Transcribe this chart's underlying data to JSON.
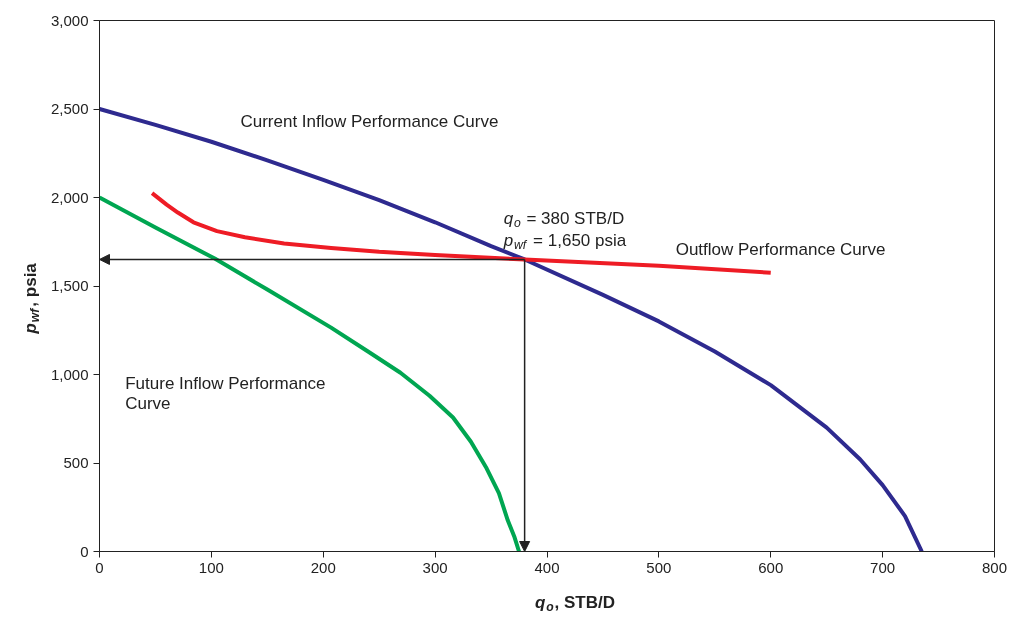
{
  "chart_data": {
    "type": "line",
    "xlabel": "q$_{o}$, STB/D",
    "ylabel": "p$_{wf}$, psia",
    "xlim": [
      0,
      800
    ],
    "ylim": [
      0,
      3000
    ],
    "xticks": [
      0,
      100,
      200,
      300,
      400,
      500,
      600,
      700,
      800
    ],
    "yticks": [
      0,
      500,
      {
        "value": 1000,
        "label": "1,000"
      },
      {
        "value": 1500,
        "label": "1,500"
      },
      {
        "value": 2000,
        "label": "2,000"
      },
      {
        "value": 2500,
        "label": "2,500"
      },
      {
        "value": 3000,
        "label": "3,000"
      }
    ],
    "grid": false,
    "legend": false,
    "marker": "none",
    "line_style": "solid",
    "series": [
      {
        "name": "Current Inflow Performance Curve",
        "color": "#2e2a8f",
        "x": [
          0,
          50,
          100,
          150,
          200,
          250,
          300,
          350,
          380,
          450,
          500,
          550,
          600,
          650,
          680,
          700,
          720,
          735
        ],
        "values": [
          2500,
          2410,
          2315,
          2210,
          2100,
          1985,
          1860,
          1725,
          1650,
          1450,
          1300,
          1130,
          940,
          700,
          520,
          375,
          200,
          0
        ]
      },
      {
        "name": "Outflow Performance Curve",
        "color": "#ee1c25",
        "x": [
          47,
          60,
          70,
          84,
          105,
          130,
          165,
          207,
          250,
          300,
          380,
          500,
          600
        ],
        "values": [
          2025,
          1960,
          1915,
          1860,
          1810,
          1775,
          1740,
          1715,
          1693,
          1675,
          1650,
          1615,
          1575
        ]
      },
      {
        "name": "Future Inflow Performance Curve",
        "color": "#00a651",
        "x": [
          0,
          50,
          103,
          150,
          207,
          240,
          269,
          295,
          316,
          332,
          346,
          357,
          365,
          371,
          375
        ],
        "values": [
          2000,
          1830,
          1655,
          1480,
          1265,
          1130,
          1010,
          880,
          757,
          620,
          470,
          330,
          175,
          80,
          0
        ]
      }
    ],
    "annotations": [
      {
        "text": "q$_{o}$ = 380 STB/D\np$_{wf}$ = 1,650 psia",
        "x": 380,
        "y": 1650
      }
    ]
  }
}
